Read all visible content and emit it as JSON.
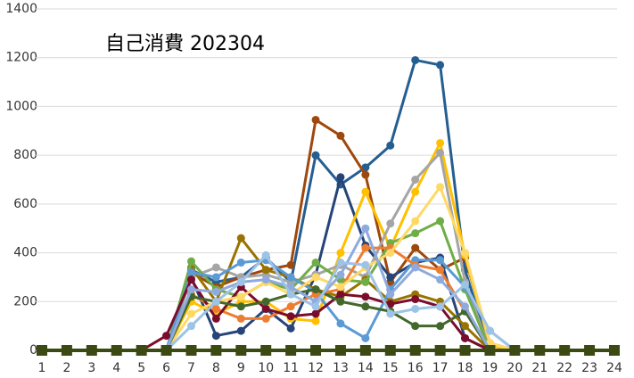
{
  "chart_data": {
    "type": "line",
    "title": "自己消費 202304",
    "categories": [
      "1",
      "2",
      "3",
      "4",
      "5",
      "6",
      "7",
      "8",
      "9",
      "10",
      "11",
      "12",
      "13",
      "14",
      "15",
      "16",
      "17",
      "18",
      "19",
      "20",
      "21",
      "22",
      "23",
      "24"
    ],
    "ylim": [
      0,
      1400
    ],
    "yticks": [
      0,
      200,
      400,
      600,
      800,
      1000,
      1200,
      1400
    ],
    "grid": true,
    "series": [
      {
        "color": "#255e91",
        "values": [
          0,
          0,
          0,
          0,
          0,
          0,
          330,
          280,
          300,
          380,
          280,
          800,
          680,
          750,
          840,
          1190,
          1170,
          330,
          0,
          0,
          0,
          0,
          0,
          0
        ]
      },
      {
        "color": "#9e480e",
        "values": [
          0,
          0,
          0,
          0,
          0,
          0,
          320,
          260,
          300,
          330,
          350,
          945,
          880,
          720,
          280,
          420,
          330,
          380,
          30,
          0,
          0,
          0,
          0,
          0
        ]
      },
      {
        "color": "#264478",
        "values": [
          0,
          0,
          0,
          0,
          0,
          0,
          300,
          60,
          80,
          170,
          90,
          310,
          710,
          430,
          300,
          360,
          380,
          50,
          0,
          0,
          0,
          0,
          0,
          0
        ]
      },
      {
        "color": "#ffc000",
        "values": [
          0,
          0,
          0,
          0,
          0,
          0,
          200,
          150,
          200,
          200,
          130,
          120,
          400,
          650,
          420,
          650,
          850,
          390,
          20,
          0,
          0,
          0,
          0,
          0
        ]
      },
      {
        "color": "#a5a5a5",
        "values": [
          0,
          0,
          0,
          0,
          0,
          0,
          300,
          340,
          300,
          310,
          280,
          310,
          350,
          300,
          520,
          700,
          810,
          280,
          0,
          0,
          0,
          0,
          0,
          0
        ]
      },
      {
        "color": "#997300",
        "values": [
          0,
          0,
          0,
          0,
          0,
          0,
          340,
          200,
          460,
          330,
          300,
          250,
          220,
          290,
          200,
          230,
          200,
          100,
          0,
          0,
          0,
          0,
          0,
          0
        ]
      },
      {
        "color": "#70ad47",
        "values": [
          0,
          0,
          0,
          0,
          0,
          0,
          365,
          250,
          220,
          280,
          250,
          360,
          290,
          280,
          440,
          480,
          530,
          250,
          0,
          0,
          0,
          0,
          0,
          0
        ]
      },
      {
        "color": "#5b9bd5",
        "values": [
          0,
          0,
          0,
          0,
          0,
          0,
          320,
          300,
          360,
          370,
          300,
          240,
          110,
          50,
          250,
          370,
          370,
          260,
          80,
          0,
          0,
          0,
          0,
          0
        ]
      },
      {
        "color": "#ed7d31",
        "values": [
          0,
          0,
          0,
          0,
          0,
          0,
          230,
          170,
          130,
          130,
          180,
          230,
          250,
          420,
          420,
          350,
          330,
          160,
          0,
          0,
          0,
          0,
          0,
          0
        ]
      },
      {
        "color": "#7b0c2c",
        "values": [
          0,
          0,
          0,
          0,
          0,
          60,
          290,
          130,
          260,
          170,
          140,
          150,
          230,
          220,
          190,
          210,
          180,
          50,
          0,
          0,
          0,
          0,
          0,
          0
        ]
      },
      {
        "color": "#ffd966",
        "values": [
          0,
          0,
          0,
          0,
          0,
          0,
          150,
          200,
          220,
          280,
          230,
          300,
          260,
          340,
          400,
          530,
          670,
          400,
          30,
          0,
          0,
          0,
          0,
          0
        ]
      },
      {
        "color": "#43682b",
        "values": [
          0,
          0,
          0,
          0,
          0,
          0,
          220,
          200,
          180,
          200,
          230,
          250,
          200,
          180,
          160,
          100,
          100,
          160,
          0,
          0,
          0,
          0,
          0,
          0
        ]
      },
      {
        "color": "#8faadc",
        "values": [
          0,
          0,
          0,
          0,
          0,
          0,
          250,
          240,
          280,
          290,
          260,
          200,
          310,
          500,
          230,
          340,
          290,
          180,
          0,
          0,
          0,
          0,
          0,
          0
        ]
      },
      {
        "color": "#9dc3e6",
        "values": [
          0,
          0,
          0,
          0,
          0,
          0,
          100,
          200,
          280,
          390,
          230,
          180,
          360,
          350,
          150,
          170,
          180,
          270,
          80,
          0,
          0,
          0,
          0,
          0
        ]
      },
      {
        "color": "#3b4a12",
        "marker": "square",
        "values": [
          0,
          0,
          0,
          0,
          0,
          0,
          0,
          0,
          0,
          0,
          0,
          0,
          0,
          0,
          0,
          0,
          0,
          0,
          0,
          0,
          0,
          0,
          0,
          0
        ]
      }
    ]
  }
}
